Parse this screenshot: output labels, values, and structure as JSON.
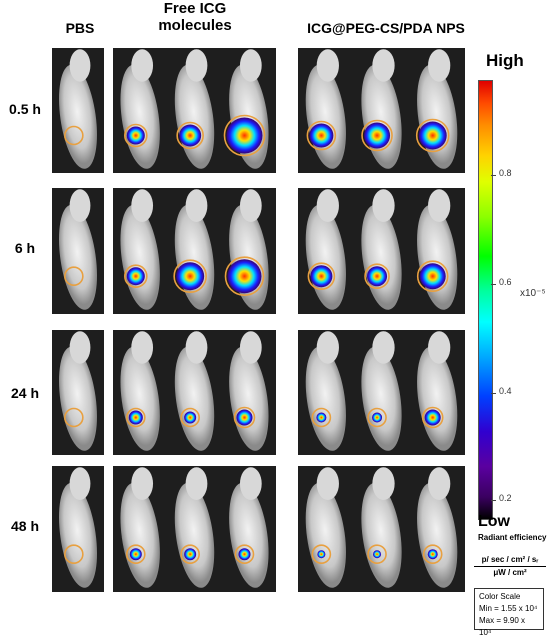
{
  "column_headers": {
    "pbs": "PBS",
    "free_icg_line1": "Free ICG",
    "free_icg_line2": "molecules",
    "nps": "ICG@PEG-CS/PDA NPS"
  },
  "row_labels": [
    "0.5 h",
    "6 h",
    "24 h",
    "48 h"
  ],
  "colorbar": {
    "high_label": "High",
    "low_label": "Low",
    "ticks": [
      "0.8",
      "0.6",
      "0.4",
      "0.2"
    ],
    "unit": "x10⁻⁵",
    "caption": "Radiant efficiency",
    "units_numerator": "p/ sec / cm² / sᵣ",
    "units_denominator": "μW / cm²",
    "scale_title": "Color Scale",
    "scale_min": "Min = 1.55 x 10⁴",
    "scale_max": "Max = 9.90 x 10⁴"
  }
}
